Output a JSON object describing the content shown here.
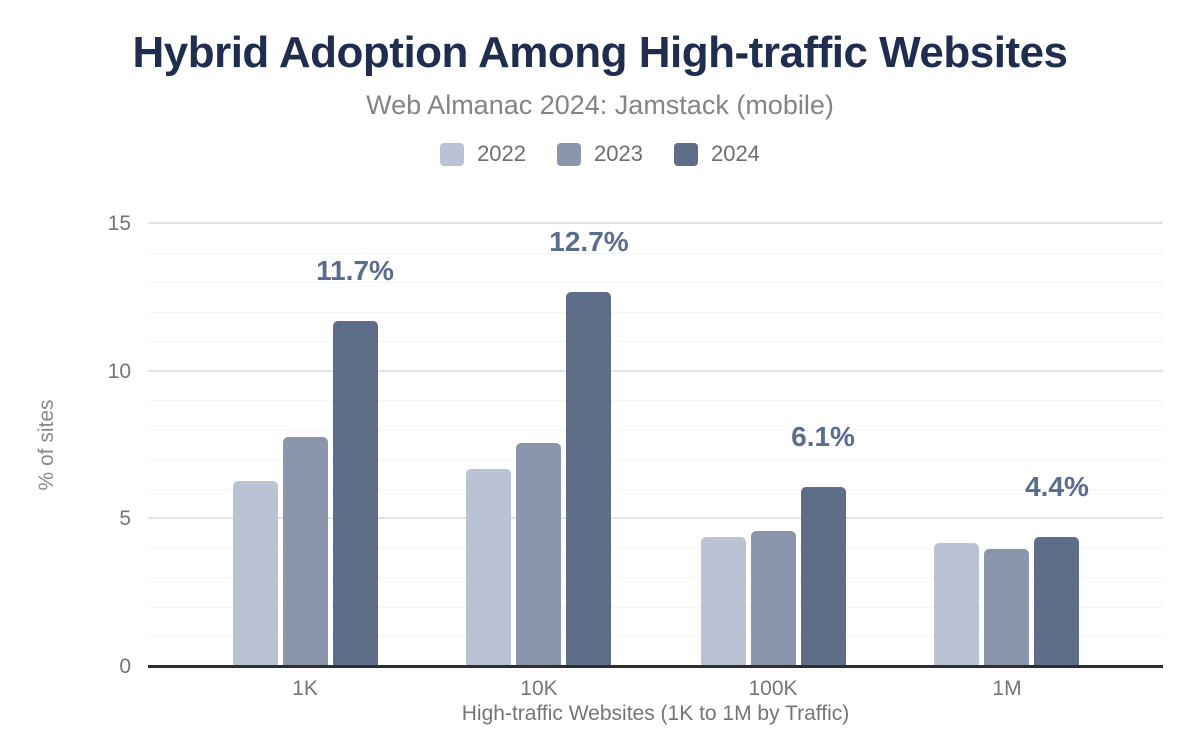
{
  "chart_data": {
    "type": "bar",
    "title": "Hybrid Adoption Among High-traffic Websites",
    "subtitle": "Web Almanac 2024: Jamstack (mobile)",
    "categories": [
      "1K",
      "10K",
      "100K",
      "1M"
    ],
    "series": [
      {
        "name": "2022",
        "color": "#b9c3d3",
        "values": [
          6.3,
          6.7,
          4.4,
          4.2
        ]
      },
      {
        "name": "2023",
        "color": "#8b96ad",
        "values": [
          7.8,
          7.6,
          4.6,
          4.0
        ]
      },
      {
        "name": "2024",
        "color": "#5e6e88",
        "values": [
          11.7,
          12.7,
          6.1,
          4.4
        ],
        "data_labels": [
          "11.7%",
          "12.7%",
          "6.1%",
          "4.4%"
        ]
      }
    ],
    "xlabel": "High-traffic Websites (1K to 1M by Traffic)",
    "ylabel": "% of sites",
    "ylim": [
      0,
      15
    ],
    "yticks": [
      0,
      5,
      10,
      15
    ],
    "minor_grid_step": 1,
    "grid": true,
    "legend_position": "top"
  },
  "colors": {
    "title_text": "#1f2d4e",
    "subtitle_text": "#848484",
    "axis_text": "#757575",
    "data_label_text": "#5a6c8f",
    "axis_line": "#2e2e2e",
    "major_grid": "#e2e4e9",
    "minor_grid": "#f3f4f6"
  }
}
